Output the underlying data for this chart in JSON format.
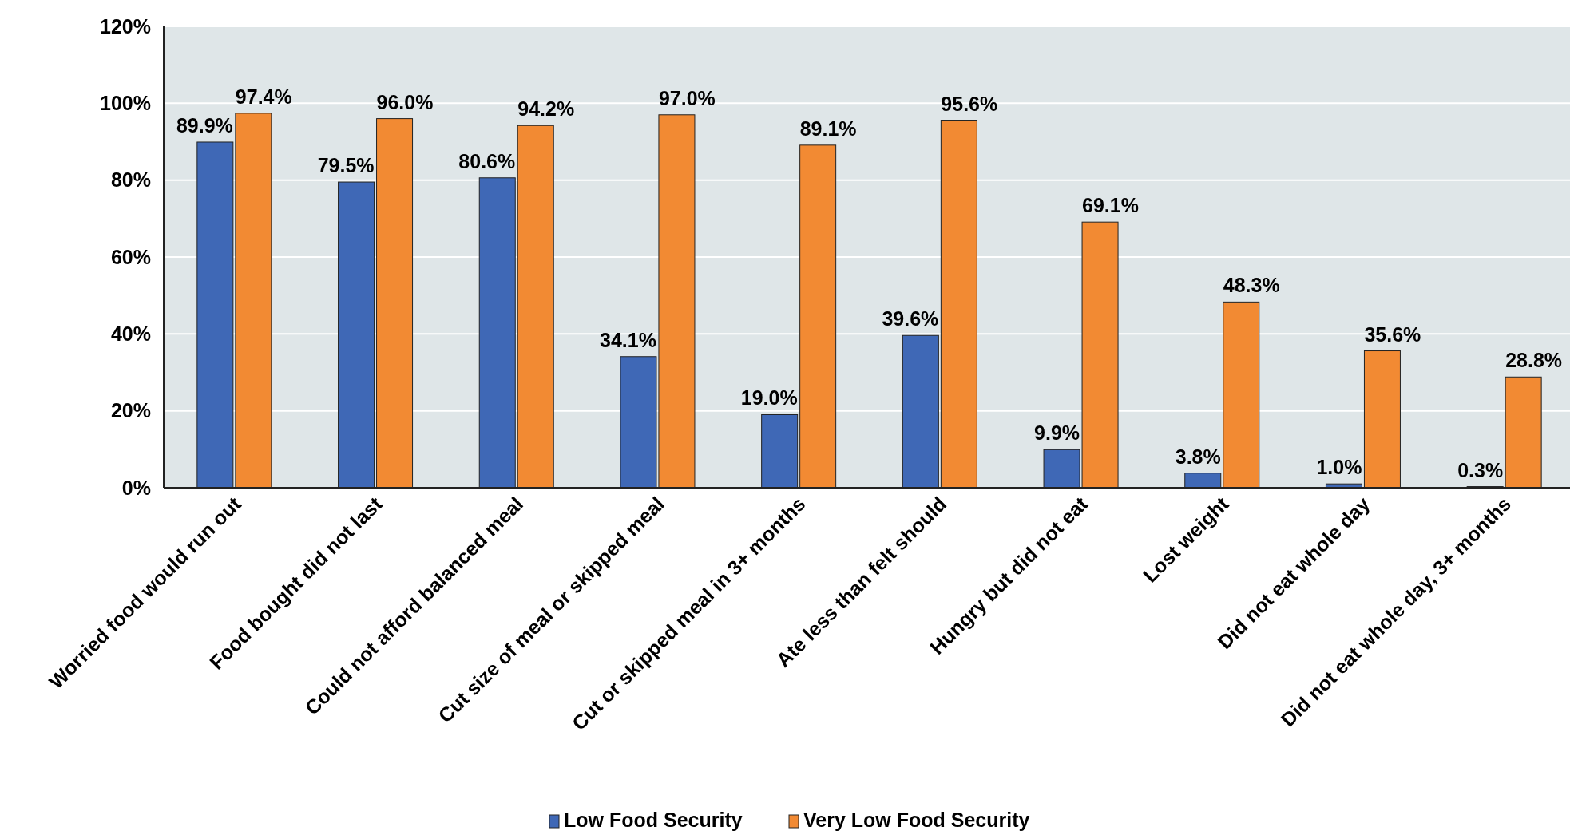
{
  "chart_data": {
    "type": "bar",
    "categories": [
      "Worried food would run out",
      "Food bought did not last",
      "Could not afford balanced meal",
      "Cut size of meal or skipped meal",
      "Cut or skipped meal in 3+ months",
      "Ate less than felt should",
      "Hungry but did not eat",
      "Lost weight",
      "Did not eat whole day",
      "Did not eat whole day, 3+ months"
    ],
    "series": [
      {
        "name": "Low Food Security",
        "color": "#3f68b6",
        "values": [
          89.9,
          79.5,
          80.6,
          34.1,
          19.0,
          39.6,
          9.9,
          3.8,
          1.0,
          0.3
        ],
        "value_labels": [
          "89.9%",
          "79.5%",
          "80.6%",
          "34.1%",
          "19.0%",
          "39.6%",
          "9.9%",
          "3.8%",
          "1.0%",
          "0.3%"
        ]
      },
      {
        "name": "Very Low Food Security",
        "color": "#f28a33",
        "values": [
          97.4,
          96.0,
          94.2,
          97.0,
          89.1,
          95.6,
          69.1,
          48.3,
          35.6,
          28.8
        ],
        "value_labels": [
          "97.4%",
          "96.0%",
          "94.2%",
          "97.0%",
          "89.1%",
          "95.6%",
          "69.1%",
          "48.3%",
          "35.6%",
          "28.8%"
        ]
      }
    ],
    "ylim": [
      0,
      120
    ],
    "yticks": [
      {
        "value": 0,
        "label": "0%"
      },
      {
        "value": 20,
        "label": "20%"
      },
      {
        "value": 40,
        "label": "40%"
      },
      {
        "value": 60,
        "label": "60%"
      },
      {
        "value": 80,
        "label": "80%"
      },
      {
        "value": 100,
        "label": "100%"
      },
      {
        "value": 120,
        "label": "120%"
      }
    ],
    "grid": "y",
    "legend": "bottom"
  }
}
